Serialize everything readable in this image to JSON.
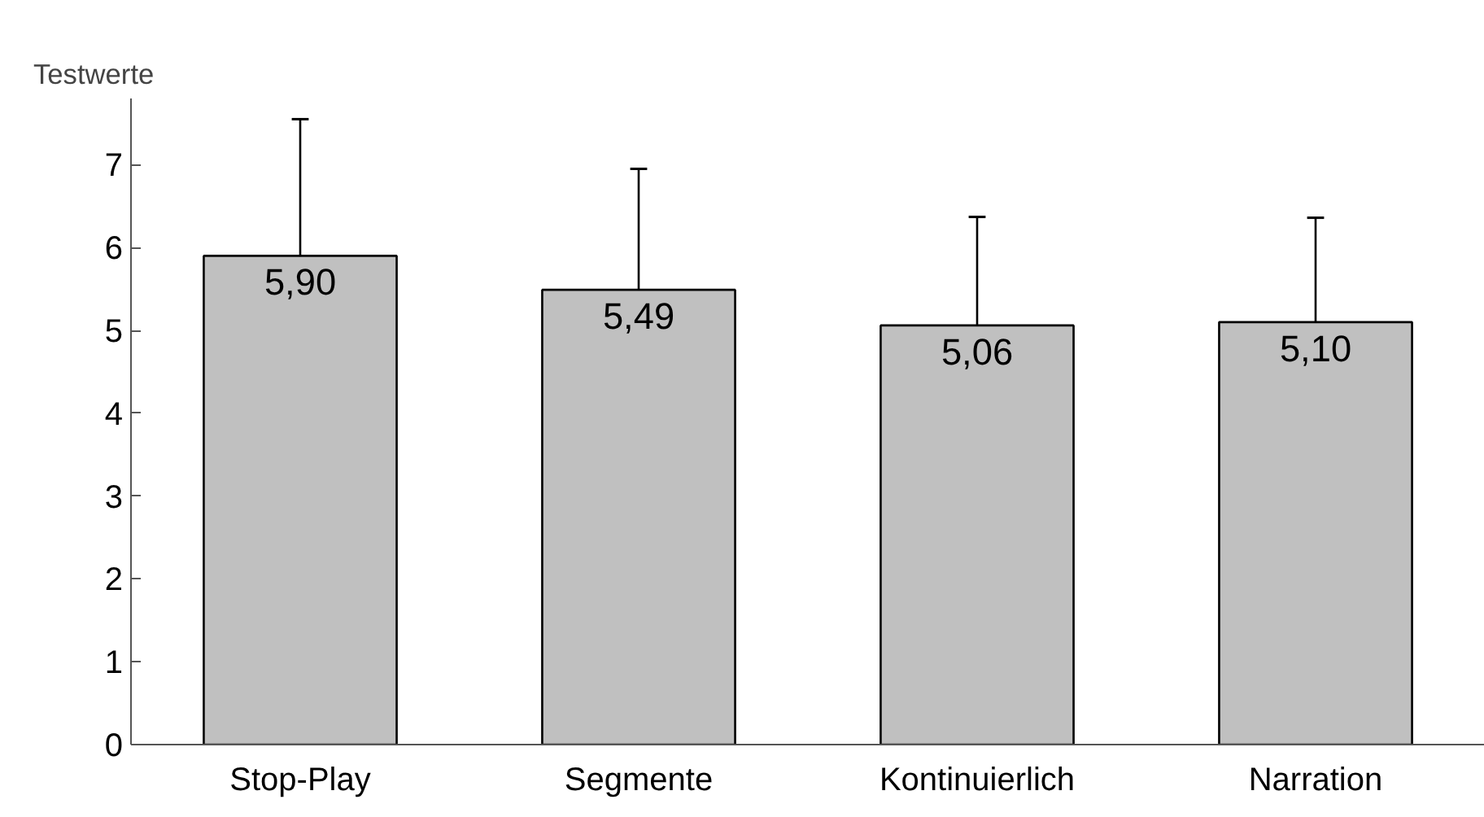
{
  "chart_data": {
    "type": "bar",
    "ylabel": "Testwerte",
    "categories": [
      "Stop-Play",
      "Segmente",
      "Kontinuierlich",
      "Narration"
    ],
    "values": [
      5.9,
      5.49,
      5.06,
      5.1
    ],
    "value_labels": [
      "5,90",
      "5,49",
      "5,06",
      "5,10"
    ],
    "errors": [
      [
        5.9,
        7.55
      ],
      [
        5.49,
        6.95
      ],
      [
        5.06,
        6.37
      ],
      [
        5.1,
        6.36
      ]
    ],
    "color": "#c0c0c0",
    "ylim": [
      0,
      7.8
    ],
    "yticks": [
      0,
      1,
      2,
      3,
      4,
      5,
      6,
      7
    ],
    "grid": false
  }
}
